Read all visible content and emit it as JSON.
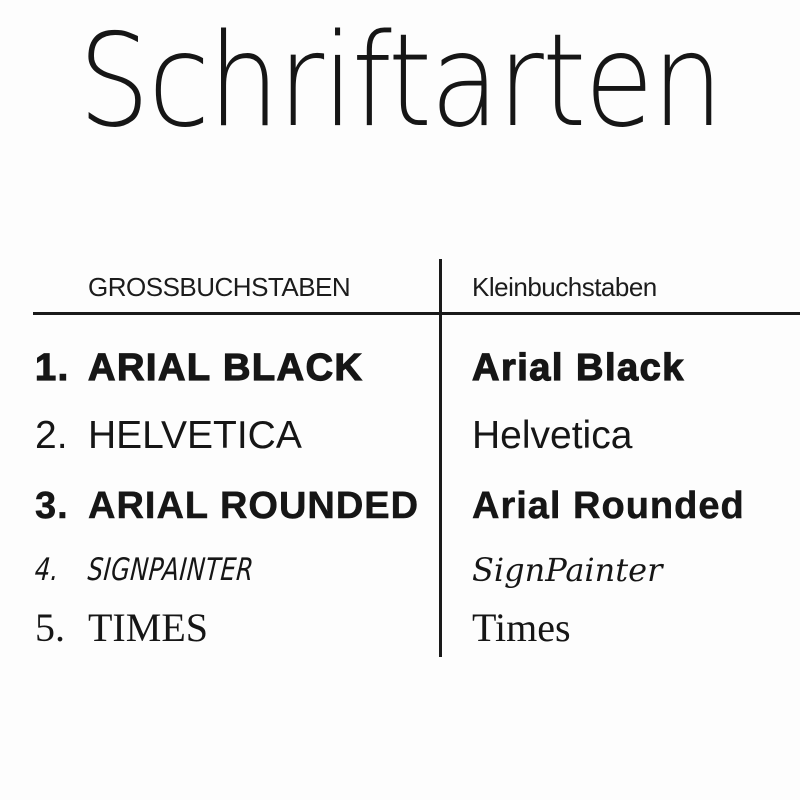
{
  "page": {
    "title": "Schriftarten",
    "background_color": "#fdfdfd",
    "text_color": "#161616",
    "line_color": "#1a1a1a"
  },
  "table": {
    "column_headers": {
      "uppercase": "GROSSBUCHSTABEN",
      "lowercase": "Kleinbuchstaben"
    },
    "rows": [
      {
        "number": "1.",
        "uppercase": "ARIAL BLACK",
        "lowercase": "Arial Black"
      },
      {
        "number": "2.",
        "uppercase": "HELVETICA",
        "lowercase": "Helvetica"
      },
      {
        "number": "3.",
        "uppercase": "ARIAL ROUNDED",
        "lowercase": "Arial Rounded"
      },
      {
        "number": "4.",
        "uppercase": "SIGNPAINTER",
        "lowercase": "SignPainter"
      },
      {
        "number": "5.",
        "uppercase": "TIMES",
        "lowercase": "Times"
      }
    ]
  }
}
